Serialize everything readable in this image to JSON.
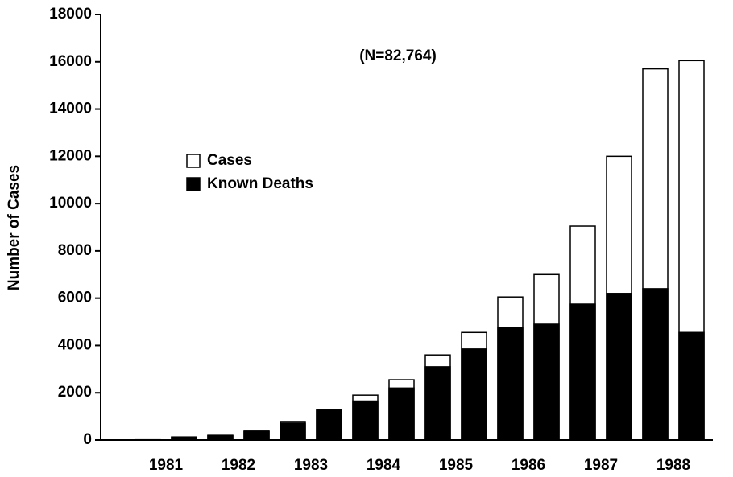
{
  "chart_data": {
    "type": "bar",
    "annotation": "(N=82,764)",
    "y_label": "Number of Cases",
    "categories": [
      "1981",
      null,
      "1982",
      null,
      "1983",
      null,
      "1984",
      null,
      "1985",
      null,
      "1986",
      null,
      "1987",
      null,
      "1988",
      null
    ],
    "series": [
      {
        "name": "Cases",
        "color": "#ffffff",
        "values": [
          10,
          130,
          200,
          380,
          750,
          1300,
          1900,
          2550,
          3600,
          4550,
          6050,
          7000,
          9050,
          12000,
          15700,
          16050
        ]
      },
      {
        "name": "Known Deaths",
        "color": "#000000",
        "values": [
          10,
          120,
          180,
          350,
          700,
          1250,
          1650,
          2200,
          3100,
          3850,
          4750,
          4900,
          5750,
          6200,
          6400,
          4550
        ]
      }
    ],
    "ylim": [
      0,
      18000
    ],
    "yticks": [
      0,
      2000,
      4000,
      6000,
      8000,
      10000,
      12000,
      14000,
      16000,
      18000
    ]
  }
}
